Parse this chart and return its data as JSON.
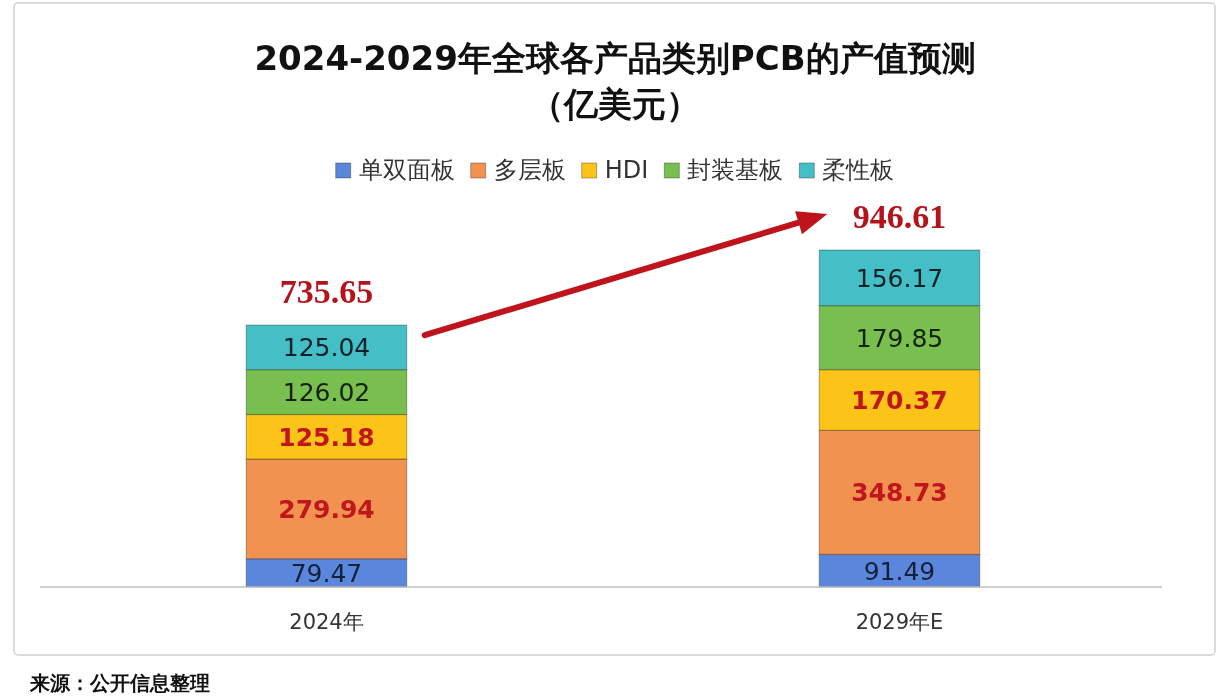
{
  "chart_data": {
    "type": "bar",
    "title": "2024-2029年全球各产品类别PCB的产值预测",
    "subtitle": "（亿美元）",
    "categories": [
      "2024年",
      "2029年E"
    ],
    "stacked": true,
    "series": [
      {
        "name": "单双面板",
        "color": "#5a87dc",
        "values": [
          79.47,
          91.49
        ]
      },
      {
        "name": "多层板",
        "color": "#f29250",
        "values": [
          279.94,
          348.73
        ]
      },
      {
        "name": "HDI",
        "color": "#fcc419",
        "values": [
          125.18,
          170.37
        ]
      },
      {
        "name": "封装基板",
        "color": "#78bf4f",
        "values": [
          126.02,
          179.85
        ]
      },
      {
        "name": "柔性板",
        "color": "#45bfc6",
        "values": [
          125.04,
          156.17
        ]
      }
    ],
    "data_labels": true,
    "totals": [
      "735.65",
      "946.61"
    ],
    "legend": "top",
    "annotations": [
      "来源：公开信息整理"
    ]
  }
}
